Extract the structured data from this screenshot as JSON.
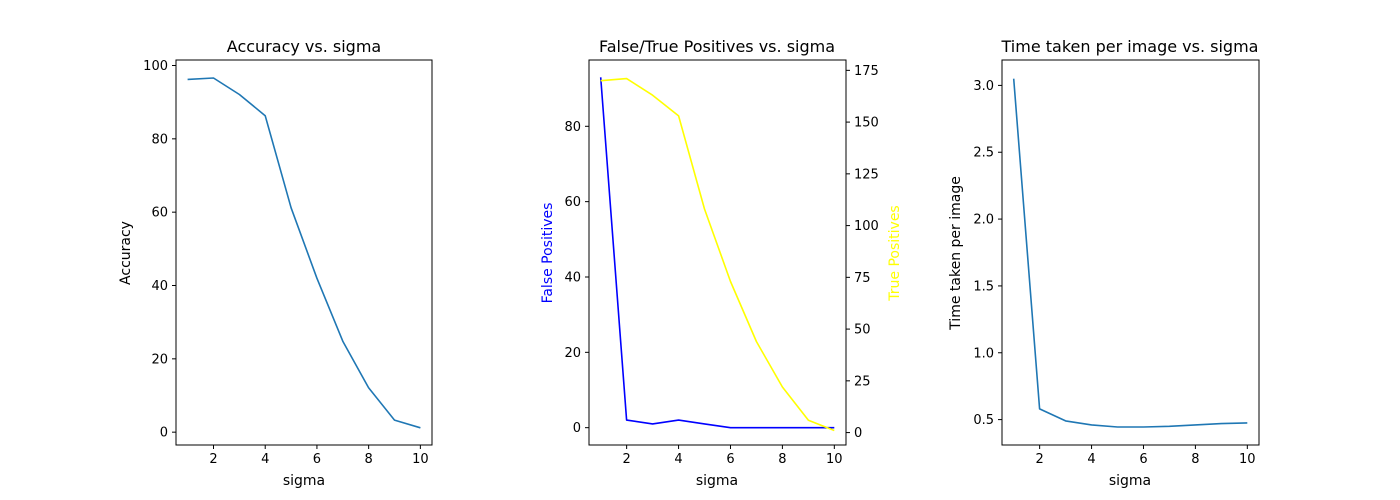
{
  "chart_data": [
    {
      "type": "line",
      "title": "Accuracy vs. sigma",
      "xlabel": "sigma",
      "ylabel": "Accuracy",
      "xlim": [
        0.55,
        10.45
      ],
      "ylim": [
        -3.5,
        101.5
      ],
      "xticks": [
        2,
        4,
        6,
        8,
        10
      ],
      "yticks": [
        0,
        20,
        40,
        60,
        80,
        100
      ],
      "series": [
        {
          "color": "#1f77b4",
          "x": [
            1,
            2,
            3,
            4,
            5,
            6,
            7,
            8,
            9,
            10
          ],
          "y": [
            96.2,
            96.6,
            92.1,
            86.3,
            61.2,
            42.0,
            24.8,
            12.1,
            3.3,
            1.2
          ]
        }
      ]
    },
    {
      "type": "line",
      "title": "False/True Positives vs. sigma",
      "xlabel": "sigma",
      "ylabel": "False Positives",
      "ylabel_color": "#0000ff",
      "y2label": "True Positives",
      "y2label_color": "#ffff00",
      "xlim": [
        0.55,
        10.45
      ],
      "ylim": [
        -4.6,
        97.6
      ],
      "y2lim": [
        -6.0,
        180.0
      ],
      "xticks": [
        2,
        4,
        6,
        8,
        10
      ],
      "yticks": [
        0,
        20,
        40,
        60,
        80
      ],
      "y2ticks": [
        0,
        25,
        50,
        75,
        100,
        125,
        150,
        175
      ],
      "series": [
        {
          "axis": "left",
          "color": "#0000ff",
          "x": [
            1,
            2,
            3,
            4,
            5,
            6,
            7,
            8,
            9,
            10
          ],
          "y": [
            93,
            2,
            1,
            2,
            1,
            0,
            0,
            0,
            0,
            0
          ]
        },
        {
          "axis": "right",
          "color": "#ffff00",
          "x": [
            1,
            2,
            3,
            4,
            5,
            6,
            7,
            8,
            9,
            10
          ],
          "y": [
            170,
            171,
            163,
            153,
            108,
            73,
            44,
            22,
            6,
            1
          ]
        }
      ]
    },
    {
      "type": "line",
      "title": "Time taken per image vs. sigma",
      "xlabel": "sigma",
      "ylabel": "Time taken per image",
      "xlim": [
        0.55,
        10.45
      ],
      "ylim": [
        0.31,
        3.19
      ],
      "xticks": [
        2,
        4,
        6,
        8,
        10
      ],
      "yticks": [
        0.5,
        1.0,
        1.5,
        2.0,
        2.5,
        3.0
      ],
      "ytick_labels": [
        "0.5",
        "1.0",
        "1.5",
        "2.0",
        "2.5",
        "3.0"
      ],
      "series": [
        {
          "color": "#1f77b4",
          "x": [
            1,
            2,
            3,
            4,
            5,
            6,
            7,
            8,
            9,
            10
          ],
          "y": [
            3.05,
            0.58,
            0.49,
            0.46,
            0.445,
            0.445,
            0.45,
            0.46,
            0.47,
            0.475
          ]
        }
      ]
    }
  ]
}
